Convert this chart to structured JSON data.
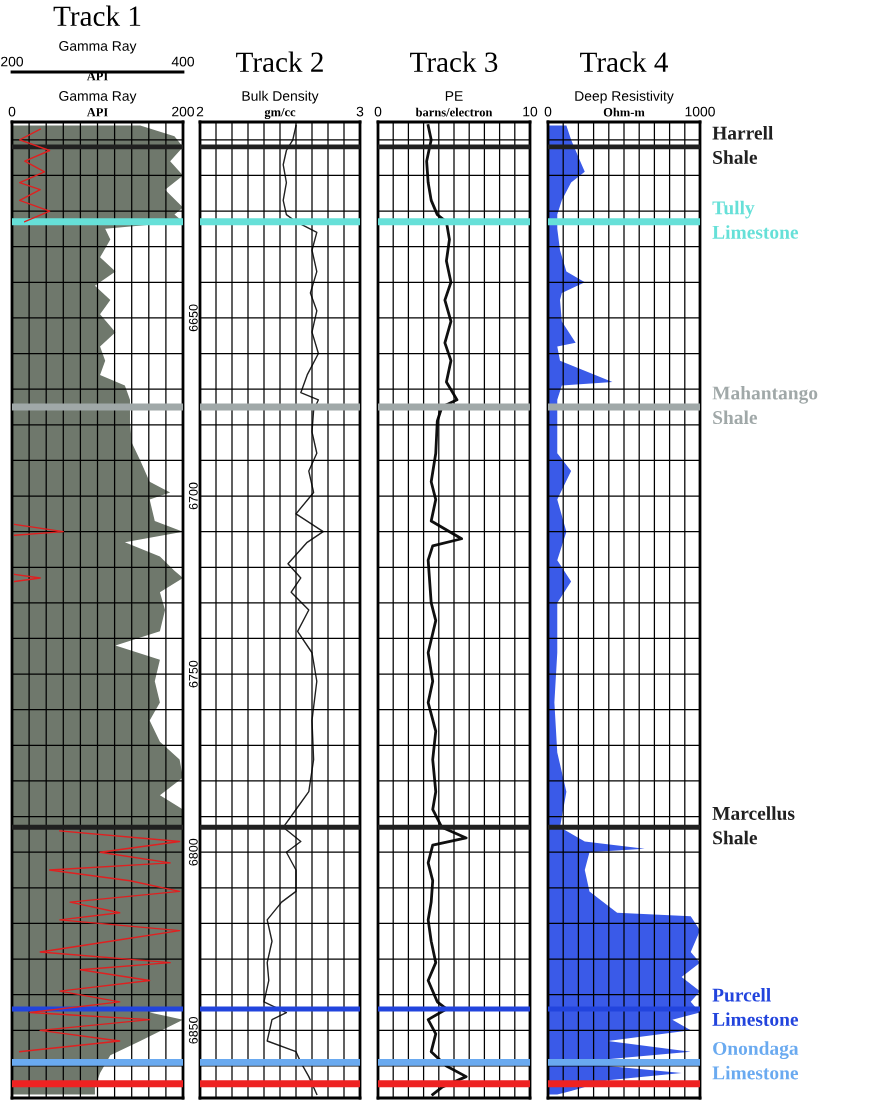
{
  "chart_data": [
    {
      "type": "area",
      "title": "Track 1",
      "orientation": "horizontal",
      "xlabel": "Gamma Ray",
      "x2label": "Gamma Ray",
      "annotations": [
        "API",
        "API"
      ],
      "xlim": [
        0,
        200
      ],
      "xticks": [
        0,
        {
          "value": 20,
          "label": null
        },
        {
          "value": 40,
          "label": null
        },
        {
          "value": 60,
          "label": null
        },
        {
          "value": 80,
          "label": null
        },
        {
          "value": 100,
          "label": null
        },
        {
          "value": 120,
          "label": null
        },
        {
          "value": 140,
          "label": null
        },
        {
          "value": 160,
          "label": null
        },
        {
          "value": 180,
          "label": null
        },
        200
      ],
      "x2lim": [
        200,
        400
      ],
      "x2ticks": [
        200,
        400
      ],
      "ylim": [
        6869,
        6595
      ],
      "yticks": [
        {
          "value": 6600,
          "label": null
        },
        {
          "value": 6610,
          "label": null
        },
        {
          "value": 6620,
          "label": null
        },
        {
          "value": 6630,
          "label": null
        },
        {
          "value": 6640,
          "label": null
        },
        6650,
        {
          "value": 6660,
          "label": null
        },
        {
          "value": 6670,
          "label": null
        },
        {
          "value": 6680,
          "label": null
        },
        {
          "value": 6690,
          "label": null
        },
        6700,
        {
          "value": 6710,
          "label": null
        },
        {
          "value": 6720,
          "label": null
        },
        {
          "value": 6730,
          "label": null
        },
        {
          "value": 6740,
          "label": null
        },
        6750,
        {
          "value": 6760,
          "label": null
        },
        {
          "value": 6770,
          "label": null
        },
        {
          "value": 6780,
          "label": null
        },
        {
          "value": 6790,
          "label": null
        },
        6800,
        {
          "value": 6810,
          "label": null
        },
        {
          "value": 6820,
          "label": null
        },
        {
          "value": 6830,
          "label": null
        },
        {
          "value": 6840,
          "label": null
        },
        6850,
        {
          "value": 6860,
          "label": null
        }
      ],
      "grid": true,
      "series": [
        {
          "color": "#6f786c",
          "x": [
            6596,
            6599,
            6602,
            6606,
            6610,
            6614,
            6619,
            6621,
            6623,
            6625,
            6628,
            6633,
            6637,
            6641,
            6645,
            6649,
            6654,
            6658,
            6662,
            6666,
            6669,
            6673,
            6679,
            6685,
            6690,
            6696,
            6699,
            6701,
            6707,
            6710,
            6713,
            6717,
            6721,
            6723,
            6727,
            6732,
            6738,
            6742,
            6746,
            6752,
            6758,
            6763,
            6769,
            6774,
            6779,
            6784,
            6788,
            6793,
            6844,
            6845,
            6847,
            6853,
            6857,
            6862,
            6866,
            6868
          ],
          "values": [
            150,
            190,
            200,
            185,
            200,
            179,
            200,
            190,
            200,
            109,
            115,
            103,
            121,
            97,
            115,
            103,
            121,
            103,
            109,
            103,
            132,
            138,
            138,
            140,
            150,
            161,
            185,
            161,
            167,
            200,
            132,
            173,
            190,
            200,
            173,
            179,
            173,
            121,
            173,
            167,
            173,
            161,
            173,
            196,
            200,
            173,
            200,
            200,
            200,
            161,
            200,
            150,
            115,
            103,
            97,
            97
          ]
        },
        {
          "type": "line",
          "axis": "x2",
          "color": "#e02020",
          "x": [
            6597,
            6600,
            6603,
            6606,
            6609,
            6612,
            6614,
            6617,
            6620,
            6623,
            6660,
            6708,
            6710,
            6711,
            6716,
            6722,
            6723,
            6724,
            6760,
            6794,
            6797,
            6800,
            6803,
            6805,
            6808,
            6811,
            6814,
            6817,
            6819,
            6822,
            6825,
            6828,
            6831,
            6833,
            6836,
            6839,
            6842,
            6845,
            6847,
            6850,
            6853,
            6856
          ],
          "values": [
            233,
            209,
            244,
            215,
            238,
            209,
            233,
            209,
            244,
            215,
            null,
            203,
            260,
            203,
            null,
            203,
            233,
            203,
            null,
            256,
            396,
            303,
            385,
            244,
            338,
            396,
            268,
            326,
            256,
            396,
            315,
            233,
            385,
            280,
            361,
            256,
            326,
            221,
            361,
            233,
            326,
            209
          ]
        }
      ],
      "ref_lines": [
        {
          "axis": "y",
          "value": 6602,
          "color": "#202020"
        },
        {
          "axis": "y",
          "value": 6623,
          "color": "#66e0d8"
        },
        {
          "axis": "y",
          "value": 6675,
          "color": "#a0a8a8"
        },
        {
          "axis": "y",
          "value": 6793,
          "color": "#202020"
        },
        {
          "axis": "y",
          "value": 6844,
          "color": "#2244dd"
        },
        {
          "axis": "y",
          "value": 6859,
          "color": "#6aaaf0"
        },
        {
          "axis": "y",
          "value": 6865,
          "color": "#ee2222"
        }
      ]
    },
    {
      "type": "line",
      "title": "Track 2",
      "orientation": "horizontal",
      "xlabel": "Bulk Density",
      "annotations": [
        "gm/cc"
      ],
      "tick_labels": "x",
      "xlim": [
        2,
        3
      ],
      "xticks": [
        2,
        {
          "value": 2.1,
          "label": null
        },
        {
          "value": 2.2,
          "label": null
        },
        {
          "value": 2.3,
          "label": null
        },
        {
          "value": 2.4,
          "label": null
        },
        {
          "value": 2.5,
          "label": null
        },
        {
          "value": 2.6,
          "label": null
        },
        {
          "value": 2.7,
          "label": null
        },
        {
          "value": 2.8,
          "label": null
        },
        {
          "value": 2.9,
          "label": null
        },
        3
      ],
      "ylim": [
        6869,
        6595
      ],
      "yticks": [
        6600,
        6610,
        6620,
        6630,
        6640,
        6650,
        6660,
        6670,
        6680,
        6690,
        6700,
        6710,
        6720,
        6730,
        6740,
        6750,
        6760,
        6770,
        6780,
        6790,
        6800,
        6810,
        6820,
        6830,
        6840,
        6850,
        6860
      ],
      "grid": true,
      "series": [
        {
          "color": "#202020",
          "x": [
            6596,
            6600,
            6603,
            6607,
            6612,
            6617,
            6621,
            6623,
            6626,
            6631,
            6637,
            6643,
            6648,
            6654,
            6660,
            6666,
            6671,
            6673,
            6676,
            6682,
            6688,
            6693,
            6699,
            6705,
            6710,
            6713,
            6719,
            6723,
            6727,
            6732,
            6738,
            6744,
            6752,
            6763,
            6774,
            6783,
            6788,
            6793,
            6797,
            6800,
            6805,
            6811,
            6814,
            6819,
            6825,
            6831,
            6836,
            6842,
            6845,
            6847,
            6853,
            6856,
            6859,
            6863,
            6868
          ],
          "values": [
            2.6,
            2.58,
            2.54,
            2.52,
            2.54,
            2.52,
            2.54,
            2.6,
            2.73,
            2.7,
            2.73,
            2.69,
            2.73,
            2.7,
            2.74,
            2.67,
            2.63,
            2.74,
            2.71,
            2.7,
            2.73,
            2.68,
            2.71,
            2.6,
            2.77,
            2.67,
            2.55,
            2.63,
            2.57,
            2.68,
            2.61,
            2.7,
            2.73,
            2.7,
            2.71,
            2.68,
            2.6,
            2.52,
            2.63,
            2.54,
            2.6,
            2.6,
            2.51,
            2.42,
            2.45,
            2.42,
            2.43,
            2.4,
            2.54,
            2.45,
            2.42,
            2.6,
            2.63,
            2.68,
            2.73
          ]
        }
      ],
      "ref_lines": [
        {
          "axis": "y",
          "value": 6602,
          "color": "#202020"
        },
        {
          "axis": "y",
          "value": 6623,
          "color": "#66e0d8"
        },
        {
          "axis": "y",
          "value": 6675,
          "color": "#a0a8a8"
        },
        {
          "axis": "y",
          "value": 6793,
          "color": "#202020"
        },
        {
          "axis": "y",
          "value": 6844,
          "color": "#2244dd"
        },
        {
          "axis": "y",
          "value": 6859,
          "color": "#6aaaf0"
        },
        {
          "axis": "y",
          "value": 6865,
          "color": "#ee2222"
        }
      ]
    },
    {
      "type": "line",
      "title": "Track 3",
      "orientation": "horizontal",
      "xlabel": "PE",
      "annotations": [
        "barns/electron"
      ],
      "tick_labels": "x",
      "xlim": [
        0,
        10
      ],
      "xticks": [
        0,
        {
          "value": 1,
          "label": null
        },
        {
          "value": 2,
          "label": null
        },
        {
          "value": 3,
          "label": null
        },
        {
          "value": 4,
          "label": null
        },
        {
          "value": 5,
          "label": null
        },
        {
          "value": 6,
          "label": null
        },
        {
          "value": 7,
          "label": null
        },
        {
          "value": 8,
          "label": null
        },
        {
          "value": 9,
          "label": null
        },
        10
      ],
      "ylim": [
        6869,
        6595
      ],
      "yticks": [
        6600,
        6610,
        6620,
        6630,
        6640,
        6650,
        6660,
        6670,
        6680,
        6690,
        6700,
        6710,
        6720,
        6730,
        6740,
        6750,
        6760,
        6770,
        6780,
        6790,
        6800,
        6810,
        6820,
        6830,
        6840,
        6850,
        6860
      ],
      "grid": true,
      "series": [
        {
          "color": "#101010",
          "x": [
            6596,
            6600,
            6606,
            6612,
            6617,
            6621,
            6623,
            6628,
            6634,
            6640,
            6645,
            6651,
            6657,
            6662,
            6668,
            6673,
            6675,
            6679,
            6688,
            6696,
            6701,
            6707,
            6712,
            6714,
            6718,
            6730,
            6735,
            6744,
            6752,
            6758,
            6766,
            6774,
            6783,
            6788,
            6793,
            6796,
            6798,
            6803,
            6808,
            6814,
            6819,
            6825,
            6831,
            6836,
            6842,
            6844,
            6847,
            6851,
            6856,
            6860,
            6863,
            6866,
            6868
          ],
          "values": [
            3.3,
            3.5,
            3.2,
            3.3,
            3.5,
            3.9,
            4.5,
            4.7,
            4.5,
            4.8,
            4.4,
            4.8,
            4.4,
            4.8,
            4.5,
            5.2,
            4.2,
            3.9,
            3.8,
            3.5,
            3.8,
            3.5,
            5.5,
            3.6,
            3.3,
            3.5,
            3.8,
            3.3,
            3.6,
            3.3,
            3.8,
            3.6,
            3.8,
            3.6,
            4.2,
            5.8,
            3.6,
            3.3,
            3.6,
            3.5,
            3.3,
            3.5,
            3.8,
            3.3,
            3.9,
            4.5,
            3.3,
            3.8,
            3.5,
            4.5,
            5.8,
            4.2,
            3.6
          ]
        }
      ],
      "ref_lines": [
        {
          "axis": "y",
          "value": 6602,
          "color": "#202020"
        },
        {
          "axis": "y",
          "value": 6623,
          "color": "#66e0d8"
        },
        {
          "axis": "y",
          "value": 6675,
          "color": "#a0a8a8"
        },
        {
          "axis": "y",
          "value": 6793,
          "color": "#202020"
        },
        {
          "axis": "y",
          "value": 6844,
          "color": "#2244dd"
        },
        {
          "axis": "y",
          "value": 6859,
          "color": "#6aaaf0"
        },
        {
          "axis": "y",
          "value": 6865,
          "color": "#ee2222"
        }
      ]
    },
    {
      "type": "area",
      "title": "Track 4",
      "orientation": "horizontal",
      "xlabel": "Deep Resistivity",
      "annotations": [
        "Ohm-m"
      ],
      "tick_labels": "x",
      "xlim": [
        0,
        1000
      ],
      "xticks": [
        0,
        {
          "value": 100,
          "label": null
        },
        {
          "value": 200,
          "label": null
        },
        {
          "value": 300,
          "label": null
        },
        {
          "value": 400,
          "label": null
        },
        {
          "value": 500,
          "label": null
        },
        {
          "value": 600,
          "label": null
        },
        {
          "value": 700,
          "label": null
        },
        {
          "value": 800,
          "label": null
        },
        {
          "value": 900,
          "label": null
        },
        1000
      ],
      "ylim": [
        6869,
        6595
      ],
      "yticks": [
        6600,
        6610,
        6620,
        6630,
        6640,
        6650,
        6660,
        6670,
        6680,
        6690,
        6700,
        6710,
        6720,
        6730,
        6740,
        6750,
        6760,
        6770,
        6780,
        6790,
        6800,
        6810,
        6820,
        6830,
        6840,
        6850,
        6860
      ],
      "grid": true,
      "series": [
        {
          "color": "#3a5ae8",
          "x": [
            6596,
            6600,
            6603,
            6606,
            6609,
            6612,
            6617,
            6621,
            6625,
            6631,
            6637,
            6640,
            6643,
            6645,
            6651,
            6657,
            6658,
            6662,
            6668,
            6669,
            6673,
            6675,
            6688,
            6693,
            6701,
            6710,
            6718,
            6724,
            6730,
            6744,
            6758,
            6772,
            6783,
            6793,
            6797,
            6799,
            6800,
            6805,
            6811,
            6817,
            6818,
            6822,
            6828,
            6831,
            6835,
            6839,
            6842,
            6845,
            6847,
            6850,
            6853,
            6856,
            6859,
            6862,
            6864,
            6867,
            6868
          ],
          "values": [
            121,
            152,
            182,
            212,
            242,
            152,
            91,
            61,
            61,
            79,
            121,
            242,
            91,
            79,
            91,
            182,
            61,
            79,
            424,
            91,
            61,
            61,
            61,
            152,
            61,
            121,
            61,
            152,
            61,
            61,
            42,
            61,
            121,
            79,
            242,
            636,
            273,
            242,
            273,
            455,
            939,
            1000,
            939,
            1000,
            879,
            1000,
            939,
            1000,
            818,
            939,
            394,
            939,
            152,
            879,
            394,
            152,
            61
          ]
        }
      ],
      "ref_lines": [
        {
          "axis": "y",
          "value": 6602,
          "color": "#202020",
          "label": "Harrell\nShale"
        },
        {
          "axis": "y",
          "value": 6623,
          "color": "#66e0d8",
          "label": "Tully\nLimestone"
        },
        {
          "axis": "y",
          "value": 6675,
          "color": "#a0a8a8",
          "label": "Mahantango\nShale"
        },
        {
          "axis": "y",
          "value": 6793,
          "color": "#202020",
          "label": "Marcellus\nShale"
        },
        {
          "axis": "y",
          "value": 6844,
          "color": "#2244dd",
          "label": "Purcell\nLimestone"
        },
        {
          "axis": "y",
          "value": 6859,
          "color": "#6aaaf0",
          "label": "Onondaga\nLimestone"
        },
        {
          "axis": "y",
          "value": 6865,
          "color": "#ee2222"
        }
      ]
    }
  ]
}
